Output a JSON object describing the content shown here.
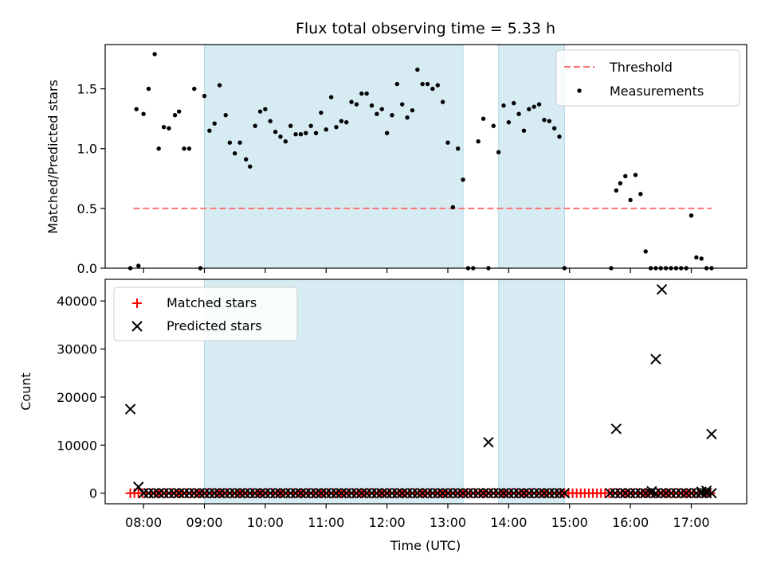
{
  "chart_data": [
    {
      "type": "scatter",
      "title": "Flux total observing time = 5.33 h",
      "xlabel": "",
      "ylabel": "Matched/Predicted stars",
      "ylim": [
        0,
        1.87
      ],
      "yticks": [
        0.0,
        0.5,
        1.0,
        1.5
      ],
      "ytick_labels": [
        "0.0",
        "0.5",
        "1.0",
        "1.5"
      ],
      "x_unit": "hours (UTC)",
      "xlim": [
        7.37,
        17.91
      ],
      "grid": false,
      "legend": {
        "placement": "top-right",
        "entries": [
          {
            "label": "Threshold",
            "style": "dashed-line",
            "color": "#ff7373"
          },
          {
            "label": "Measurements",
            "style": "dot",
            "color": "#000000"
          }
        ]
      },
      "threshold": {
        "value": 0.5,
        "x_start": "07:50",
        "x_end": "17:20"
      },
      "shaded_intervals": [
        {
          "start": "09:00",
          "end": "13:15"
        },
        {
          "start": "13:50",
          "end": "14:55"
        }
      ],
      "series": [
        {
          "name": "Measurements",
          "x": [
            "07:47",
            "07:53",
            "07:55",
            "08:00",
            "08:05",
            "08:11",
            "08:15",
            "08:20",
            "08:25",
            "08:31",
            "08:35",
            "08:40",
            "08:45",
            "08:50",
            "08:56",
            "09:00",
            "09:05",
            "09:10",
            "09:15",
            "09:21",
            "09:25",
            "09:30",
            "09:35",
            "09:41",
            "09:45",
            "09:50",
            "09:55",
            "10:00",
            "10:05",
            "10:10",
            "10:15",
            "10:20",
            "10:25",
            "10:30",
            "10:35",
            "10:40",
            "10:45",
            "10:50",
            "10:55",
            "11:00",
            "11:05",
            "11:10",
            "11:15",
            "11:20",
            "11:25",
            "11:30",
            "11:35",
            "11:40",
            "11:45",
            "11:50",
            "11:55",
            "12:00",
            "12:05",
            "12:10",
            "12:15",
            "12:20",
            "12:25",
            "12:30",
            "12:35",
            "12:40",
            "12:45",
            "12:50",
            "12:55",
            "13:00",
            "13:05",
            "13:10",
            "13:15",
            "13:20",
            "13:25",
            "13:30",
            "13:35",
            "13:40",
            "13:45",
            "13:50",
            "13:55",
            "14:00",
            "14:05",
            "14:10",
            "14:15",
            "14:20",
            "14:25",
            "14:30",
            "14:35",
            "14:40",
            "14:45",
            "14:50",
            "14:55",
            "15:41",
            "15:46",
            "15:50",
            "15:55",
            "16:00",
            "16:05",
            "16:10",
            "16:15",
            "16:20",
            "16:25",
            "16:30",
            "16:35",
            "16:40",
            "16:45",
            "16:50",
            "16:55",
            "17:00",
            "17:05",
            "17:10",
            "17:15",
            "17:20"
          ],
          "values": [
            0.0,
            1.33,
            0.02,
            1.29,
            1.5,
            1.79,
            1.0,
            1.18,
            1.17,
            1.28,
            1.31,
            1.0,
            1.0,
            1.5,
            0.0,
            1.44,
            1.15,
            1.21,
            1.53,
            1.28,
            1.05,
            0.96,
            1.05,
            0.91,
            0.85,
            1.19,
            1.31,
            1.33,
            1.23,
            1.14,
            1.1,
            1.06,
            1.19,
            1.12,
            1.12,
            1.13,
            1.19,
            1.13,
            1.3,
            1.16,
            1.43,
            1.18,
            1.23,
            1.22,
            1.39,
            1.37,
            1.46,
            1.46,
            1.36,
            1.29,
            1.33,
            1.13,
            1.28,
            1.54,
            1.37,
            1.26,
            1.32,
            1.66,
            1.54,
            1.54,
            1.5,
            1.53,
            1.39,
            1.05,
            0.51,
            1.0,
            0.74,
            0.0,
            0.0,
            1.06,
            1.25,
            0.0,
            1.19,
            0.97,
            1.36,
            1.22,
            1.38,
            1.29,
            1.15,
            1.33,
            1.35,
            1.37,
            1.24,
            1.23,
            1.17,
            1.1,
            0.0,
            0.0,
            0.65,
            0.71,
            0.77,
            0.57,
            0.78,
            0.62,
            0.14,
            0.0,
            0.0,
            0.0,
            0.0,
            0.0,
            0.0,
            0.0,
            0.0,
            0.44,
            0.09,
            0.08,
            0.0,
            0.0
          ]
        }
      ]
    },
    {
      "type": "scatter",
      "title": "",
      "xlabel": "Time (UTC)",
      "ylabel": "Count",
      "ylim": [
        -2200,
        44500
      ],
      "yticks": [
        0,
        10000,
        20000,
        30000,
        40000
      ],
      "ytick_labels": [
        "0",
        "10000",
        "20000",
        "30000",
        "40000"
      ],
      "x_unit": "hours (UTC)",
      "xlim": [
        7.37,
        17.91
      ],
      "xticks": [
        "08:00",
        "09:00",
        "10:00",
        "11:00",
        "12:00",
        "13:00",
        "14:00",
        "15:00",
        "16:00",
        "17:00"
      ],
      "grid": false,
      "legend": {
        "placement": "top-left",
        "entries": [
          {
            "label": "Matched stars",
            "style": "plus",
            "color": "#ff0000"
          },
          {
            "label": "Predicted stars",
            "style": "x",
            "color": "#000000"
          }
        ]
      },
      "shaded_intervals": [
        {
          "start": "09:00",
          "end": "13:15"
        },
        {
          "start": "13:50",
          "end": "14:55"
        }
      ],
      "series": [
        {
          "name": "Predicted stars",
          "x": [
            "07:47",
            "07:55",
            "15:46",
            "13:40",
            "16:25",
            "16:31",
            "17:20",
            "16:21",
            "17:10",
            "17:15"
          ],
          "values": [
            17500,
            1300,
            13400,
            10600,
            27900,
            42400,
            12300,
            400,
            300,
            500
          ]
        },
        {
          "name": "Predicted stars (dense, near zero)",
          "x_range": [
            "08:00",
            "17:20"
          ],
          "gap": [
            "15:00",
            "15:40"
          ],
          "step_minutes": 5,
          "value": 0
        },
        {
          "name": "Matched stars",
          "x_range": [
            "07:47",
            "17:20"
          ],
          "step_minutes": 4,
          "value": 0
        }
      ]
    }
  ]
}
